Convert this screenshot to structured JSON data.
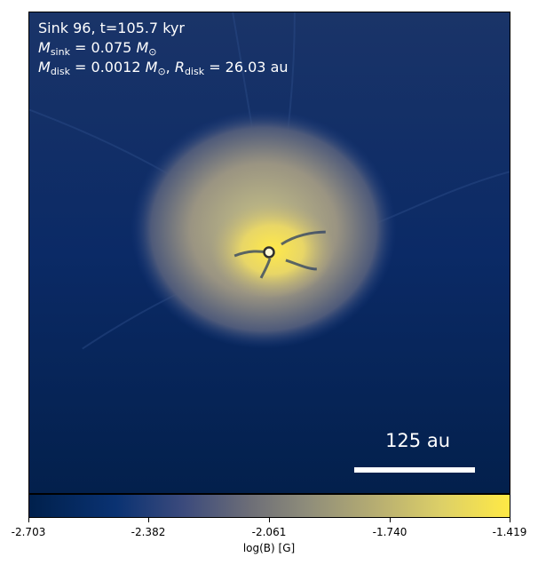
{
  "annotation": {
    "sink_line": "Sink 96, t=105.7 kyr",
    "msink_symbol": "M",
    "msink_sub": "sink",
    "msink_value": "= 0.075",
    "msink_unit": "M",
    "msink_unit_sub": "⊙",
    "mdisk_symbol": "M",
    "mdisk_sub": "disk",
    "mdisk_value": "= 0.0012",
    "mdisk_unit": "M",
    "mdisk_unit_sub": "⊙",
    "rdisk_symbol": "R",
    "rdisk_sub": "disk",
    "rdisk_value": "= 26.03 au"
  },
  "scalebar": {
    "label": "125 au"
  },
  "colorbar": {
    "ticks": [
      "-2.703",
      "-2.382",
      "-2.061",
      "-1.740",
      "-1.419"
    ],
    "label": "log(B) [G]",
    "min": -2.703,
    "max": -1.419
  },
  "colors": {
    "low": "#00204c",
    "mid": "#7c7b78",
    "high": "#ffe945"
  }
}
